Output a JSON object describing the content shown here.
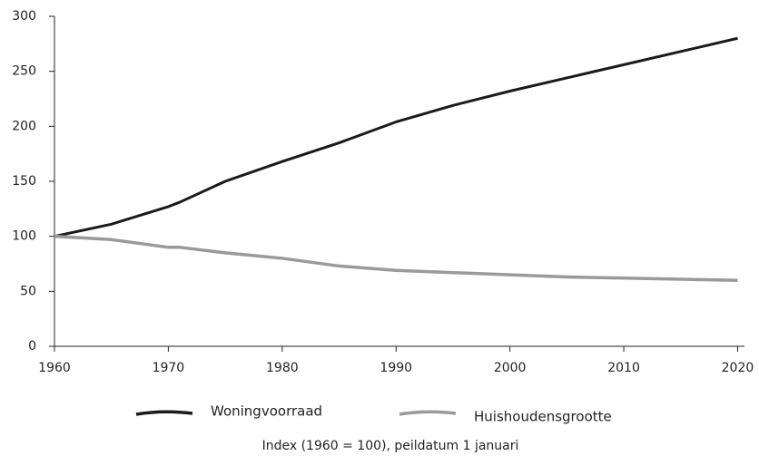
{
  "chart_data": {
    "type": "line",
    "note": "Index (1960 = 100), peildatum 1 januari",
    "x": [
      1960,
      1965,
      1970,
      1971,
      1975,
      1980,
      1985,
      1990,
      1995,
      2000,
      2005,
      2010,
      2015,
      2020
    ],
    "series": [
      {
        "name": "Woningvoorraad",
        "color": "#1a1a1a",
        "values": [
          100,
          111,
          127,
          131,
          150,
          168,
          185,
          204,
          219,
          232,
          244,
          256,
          268,
          280
        ]
      },
      {
        "name": "Huishoudensgrootte",
        "color": "#9a9a9a",
        "values": [
          100,
          97,
          90,
          90,
          85,
          80,
          73,
          69,
          67,
          65,
          63,
          62,
          61,
          60
        ]
      }
    ],
    "xlim": [
      1960,
      2020.6
    ],
    "xticks": [
      1960,
      1970,
      1980,
      1990,
      2000,
      2010,
      2020
    ],
    "ylim": [
      0,
      300
    ],
    "yticks": [
      0,
      50,
      100,
      150,
      200,
      250,
      300
    ],
    "grid": false,
    "legend": "bottom"
  }
}
